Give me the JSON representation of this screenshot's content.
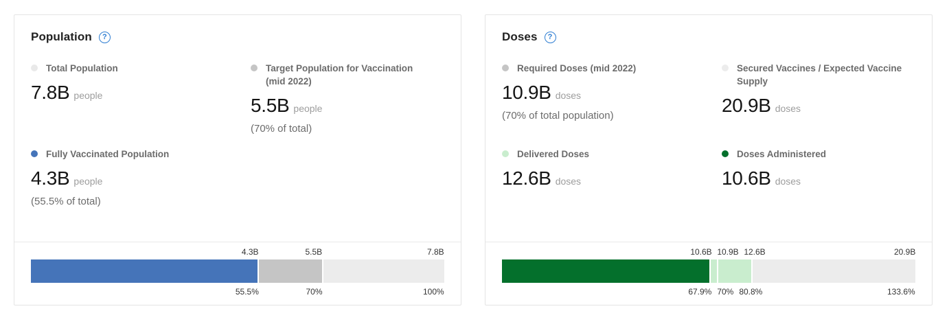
{
  "cards": [
    {
      "title": "Population",
      "help_glyph": "?",
      "stats": [
        {
          "label": "Total Population",
          "value": "7.8B",
          "unit": "people",
          "note": "",
          "dot_color": "#e9e9e9"
        },
        {
          "label": "Target Population for Vaccination (mid 2022)",
          "value": "5.5B",
          "unit": "people",
          "note": "(70% of total)",
          "dot_color": "#c5c5c5"
        },
        {
          "label": "Fully Vaccinated Population",
          "value": "4.3B",
          "unit": "people",
          "note": "(55.5% of total)",
          "dot_color": "#4574b9"
        }
      ],
      "bar": {
        "total": 7.8,
        "segments": [
          {
            "name": "Fully Vaccinated Population",
            "value": 4.3,
            "color": "#4574b9",
            "top_label": "4.3B",
            "bottom_label": "55.5%"
          },
          {
            "name": "Target Population for Vaccination (mid 2022)",
            "value": 5.5,
            "color": "#c5c5c5",
            "top_label": "5.5B",
            "bottom_label": "70%"
          },
          {
            "name": "Total Population",
            "value": 7.8,
            "color": "#ececec",
            "top_label": "7.8B",
            "bottom_label": "100%"
          }
        ]
      }
    },
    {
      "title": "Doses",
      "help_glyph": "?",
      "stats": [
        {
          "label": "Required Doses (mid 2022)",
          "value": "10.9B",
          "unit": "doses",
          "note": "(70% of total population)",
          "dot_color": "#c5c5c5"
        },
        {
          "label": "Secured Vaccines / Expected Vaccine Supply",
          "value": "20.9B",
          "unit": "doses",
          "note": "",
          "dot_color": "#ececec"
        },
        {
          "label": "Delivered Doses",
          "value": "12.6B",
          "unit": "doses",
          "note": "",
          "dot_color": "#c9edce"
        },
        {
          "label": "Doses Administered",
          "value": "10.6B",
          "unit": "doses",
          "note": "",
          "dot_color": "#04702c"
        }
      ],
      "bar": {
        "total": 20.9,
        "segments": [
          {
            "name": "Doses Administered",
            "value": 10.6,
            "color": "#04702c",
            "top_label": "10.6B",
            "bottom_label": "67.9%"
          },
          {
            "name": "Required Doses (mid 2022)",
            "value": 10.9,
            "color": "#c9edce",
            "top_label": "10.9B",
            "bottom_label": "70%"
          },
          {
            "name": "Delivered Doses",
            "value": 12.6,
            "color": "#c9edce",
            "top_label": "12.6B",
            "bottom_label": "80.8%"
          },
          {
            "name": "Secured Vaccines / Expected Vaccine Supply",
            "value": 20.9,
            "color": "#ececec",
            "top_label": "20.9B",
            "bottom_label": "133.6%"
          }
        ]
      }
    }
  ],
  "chart_data": [
    {
      "type": "bar",
      "title": "Population",
      "orientation": "horizontal_stacked_progress",
      "unit": "billions of people",
      "axis_max_B": 7.8,
      "grid": false,
      "legend_position": "above-as-stat-blocks",
      "series": [
        {
          "name": "Fully Vaccinated Population",
          "value_B": 4.3,
          "percent_of_total": "55.5%",
          "color": "#4574b9"
        },
        {
          "name": "Target Population for Vaccination (mid 2022)",
          "value_B": 5.5,
          "percent_of_total": "70%",
          "color": "#c5c5c5"
        },
        {
          "name": "Total Population",
          "value_B": 7.8,
          "percent_of_total": "100%",
          "color": "#ececec"
        }
      ]
    },
    {
      "type": "bar",
      "title": "Doses",
      "orientation": "horizontal_stacked_progress",
      "unit": "billions of doses",
      "axis_max_B": 20.9,
      "grid": false,
      "legend_position": "above-as-stat-blocks",
      "series": [
        {
          "name": "Doses Administered",
          "value_B": 10.6,
          "percent_of_total": "67.9%",
          "color": "#04702c"
        },
        {
          "name": "Required Doses (mid 2022)",
          "value_B": 10.9,
          "percent_of_total": "70%",
          "color": "#c9edce"
        },
        {
          "name": "Delivered Doses",
          "value_B": 12.6,
          "percent_of_total": "80.8%",
          "color": "#c9edce"
        },
        {
          "name": "Secured Vaccines / Expected Vaccine Supply",
          "value_B": 20.9,
          "percent_of_total": "133.6%",
          "color": "#ececec"
        }
      ]
    }
  ]
}
